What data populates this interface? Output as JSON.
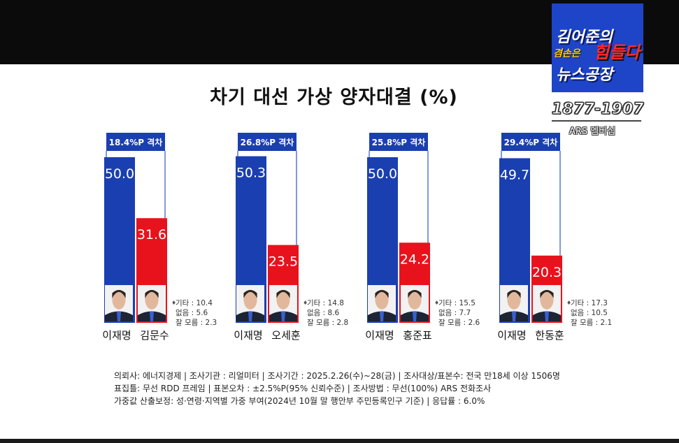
{
  "broadcast": {
    "logo_line1": "김어준의",
    "logo_line2a": "겸손은",
    "logo_line2b": "힘들다",
    "logo_line3": "뉴스공장",
    "years": "1877-1907",
    "ars": "ARS 멤버십"
  },
  "chart_data": {
    "type": "bar",
    "title": "차기 대선 가상 양자대결 (%)",
    "matchups": [
      {
        "gap": "18.4%P 격차",
        "candidates": [
          "이재명",
          "김문수"
        ],
        "values": [
          50.0,
          31.6
        ],
        "value_labels": [
          "50.0",
          "31.6"
        ],
        "other": {
          "기타": "기타 : 10.4",
          "없음": "없음 : 5.6",
          "잘모름": "잘 모름 : 2.3"
        }
      },
      {
        "gap": "26.8%P 격차",
        "candidates": [
          "이재명",
          "오세훈"
        ],
        "values": [
          50.3,
          23.5
        ],
        "value_labels": [
          "50.3",
          "23.5"
        ],
        "other": {
          "기타": "기타 : 14.8",
          "없음": "없음 : 8.6",
          "잘모름": "잘 모름 : 2.8"
        }
      },
      {
        "gap": "25.8%P 격차",
        "candidates": [
          "이재명",
          "홍준표"
        ],
        "values": [
          50.0,
          24.2
        ],
        "value_labels": [
          "50.0",
          "24.2"
        ],
        "other": {
          "기타": "기타 : 15.5",
          "없음": "없음 : 7.7",
          "잘모름": "잘 모름 : 2.6"
        }
      },
      {
        "gap": "29.4%P 격차",
        "candidates": [
          "이재명",
          "한동훈"
        ],
        "values": [
          49.7,
          20.3
        ],
        "value_labels": [
          "49.7",
          "20.3"
        ],
        "other": {
          "기타": "기타 : 17.3",
          "없음": "없음 : 10.5",
          "잘모름": "잘 모름 : 2.1"
        }
      }
    ],
    "colors": {
      "left": "#1a3fb0",
      "right": "#e8121d",
      "gap_box": "#1a3fb0"
    }
  },
  "footnote": {
    "line1": "의뢰사: 에너지경제 | 조사기관 : 리얼미터 | 조사기간 : 2025.2.26(수)~28(금) | 조사대상/표본수: 전국 만18세 이상 1506명",
    "line2": "표집틀: 무선 RDD 프레임 | 표본오차 : ±2.5%P(95% 신뢰수준) | 조사방법 : 무선(100%) ARS 전화조사",
    "line3": "가중값 산출보정: 성·연령·지역별 가중 부여(2024년 10월 말 행안부 주민등록인구 기준) | 응답률 : 6.0%"
  }
}
